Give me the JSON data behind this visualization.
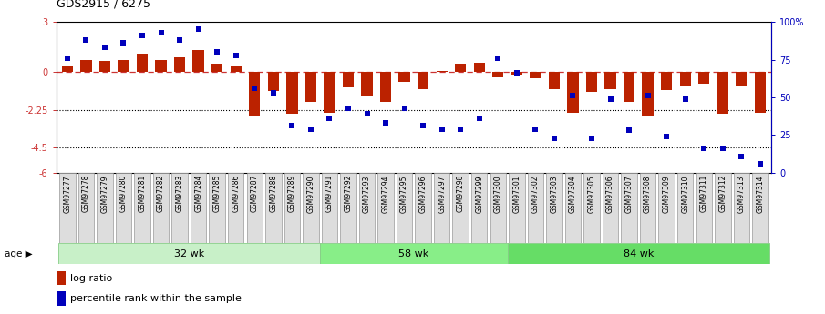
{
  "title": "GDS2915 / 6275",
  "samples": [
    "GSM97277",
    "GSM97278",
    "GSM97279",
    "GSM97280",
    "GSM97281",
    "GSM97282",
    "GSM97283",
    "GSM97284",
    "GSM97285",
    "GSM97286",
    "GSM97287",
    "GSM97288",
    "GSM97289",
    "GSM97290",
    "GSM97291",
    "GSM97292",
    "GSM97293",
    "GSM97294",
    "GSM97295",
    "GSM97296",
    "GSM97297",
    "GSM97298",
    "GSM97299",
    "GSM97300",
    "GSM97301",
    "GSM97302",
    "GSM97303",
    "GSM97304",
    "GSM97305",
    "GSM97306",
    "GSM97307",
    "GSM97308",
    "GSM97309",
    "GSM97310",
    "GSM97311",
    "GSM97312",
    "GSM97313",
    "GSM97314"
  ],
  "log_ratio": [
    0.35,
    0.7,
    0.65,
    0.7,
    1.1,
    0.75,
    0.9,
    1.3,
    0.5,
    0.35,
    -2.6,
    -1.1,
    -2.5,
    -1.8,
    -2.4,
    -0.9,
    -1.4,
    -1.8,
    -0.6,
    -1.0,
    0.1,
    0.5,
    0.55,
    -0.3,
    -0.15,
    -0.35,
    -1.0,
    -2.45,
    -1.2,
    -1.0,
    -1.8,
    -2.6,
    -1.05,
    -0.8,
    -0.7,
    -2.5,
    -0.85,
    -2.45
  ],
  "percentile_rank": [
    76,
    88,
    83,
    86,
    91,
    93,
    88,
    95,
    80,
    78,
    56,
    53,
    31,
    29,
    36,
    43,
    39,
    33,
    43,
    31,
    29,
    29,
    36,
    76,
    66,
    29,
    23,
    51,
    23,
    49,
    28,
    51,
    24,
    49,
    16,
    16,
    11,
    6
  ],
  "groups": [
    {
      "label": "32 wk",
      "start": 0,
      "end": 14
    },
    {
      "label": "58 wk",
      "start": 14,
      "end": 24
    },
    {
      "label": "84 wk",
      "start": 24,
      "end": 38
    }
  ],
  "group_colors": [
    "#C8F0C8",
    "#88EE88",
    "#66DD66"
  ],
  "ylim": [
    -6,
    3
  ],
  "yticks_left": [
    3,
    0,
    -2.25,
    -4.5,
    -6
  ],
  "ytick_labels_left": [
    "3",
    "0",
    "-2.25",
    "-4.5",
    "-6"
  ],
  "right_ytick_labels": [
    "100%",
    "75",
    "50",
    "25",
    "0"
  ],
  "right_yticks_pct": [
    100,
    75,
    50,
    25,
    0
  ],
  "bar_color": "#BB2200",
  "square_color": "#0000BB",
  "legend_items": [
    {
      "label": "log ratio",
      "color": "#BB2200"
    },
    {
      "label": "percentile rank within the sample",
      "color": "#0000BB"
    }
  ]
}
